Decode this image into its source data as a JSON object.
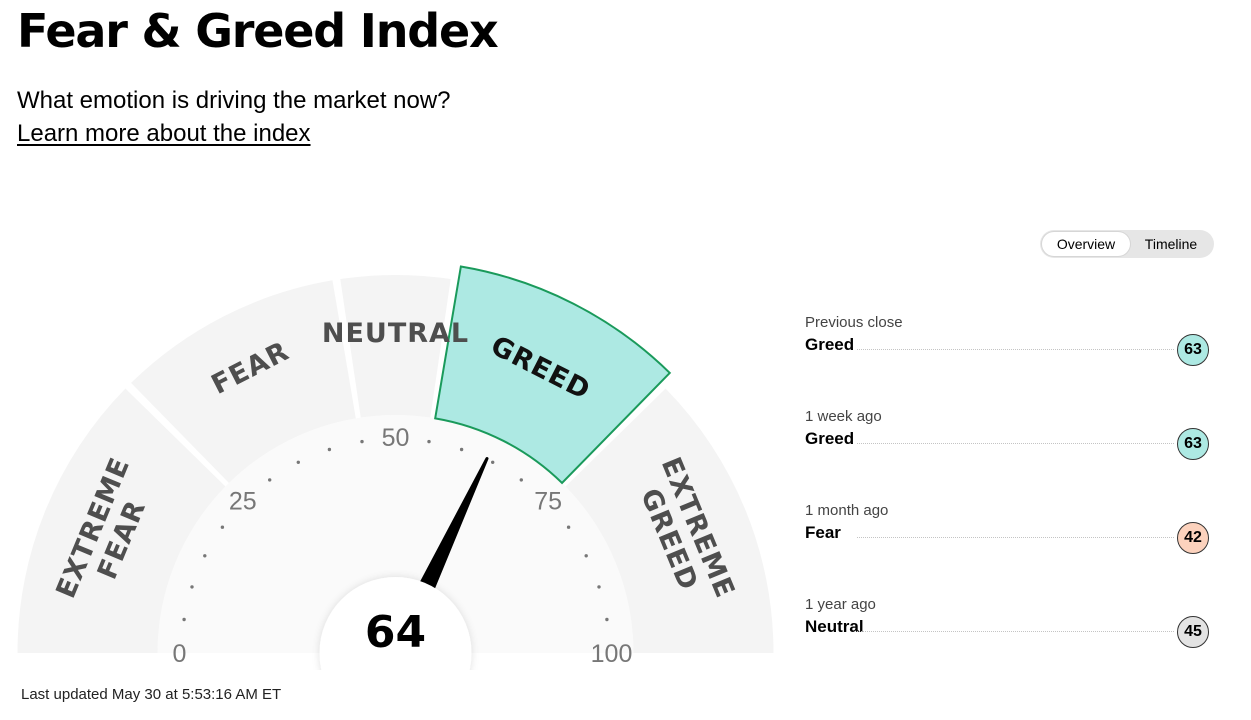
{
  "header": {
    "title": "Fear & Greed Index",
    "subtitle": "What emotion is driving the market now?",
    "learn_more_label": "Learn more about the index"
  },
  "view_toggle": {
    "options": [
      "Overview",
      "Timeline"
    ],
    "selected": "Overview"
  },
  "gauge": {
    "value": 64,
    "min": 0,
    "max": 100,
    "active_segment": "GREED",
    "segments": [
      {
        "lines": [
          "EXTREME",
          "FEAR"
        ],
        "from": 0,
        "to": 25
      },
      {
        "lines": [
          "FEAR"
        ],
        "from": 25,
        "to": 45
      },
      {
        "lines": [
          "NEUTRAL"
        ],
        "from": 45,
        "to": 55
      },
      {
        "lines": [
          "GREED"
        ],
        "from": 55,
        "to": 75
      },
      {
        "lines": [
          "EXTREME",
          "GREED"
        ],
        "from": 75,
        "to": 100
      }
    ],
    "tick_labels": [
      "0",
      "25",
      "50",
      "75",
      "100"
    ],
    "colors": {
      "segment_fill": "#f4f4f4",
      "active_fill": "#ade9e3",
      "active_stroke": "#1a9a5b",
      "needle": "#000000"
    }
  },
  "last_updated": "Last updated May 30 at 5:53:16 AM ET",
  "history": [
    {
      "period": "Previous close",
      "rating": "Greed",
      "value": "63",
      "badge_color": "#ade9e3"
    },
    {
      "period": "1 week ago",
      "rating": "Greed",
      "value": "63",
      "badge_color": "#ade9e3"
    },
    {
      "period": "1 month ago",
      "rating": "Fear",
      "value": "42",
      "badge_color": "#fcd2bd"
    },
    {
      "period": "1 year ago",
      "rating": "Neutral",
      "value": "45",
      "badge_color": "#e3e3e3"
    }
  ]
}
